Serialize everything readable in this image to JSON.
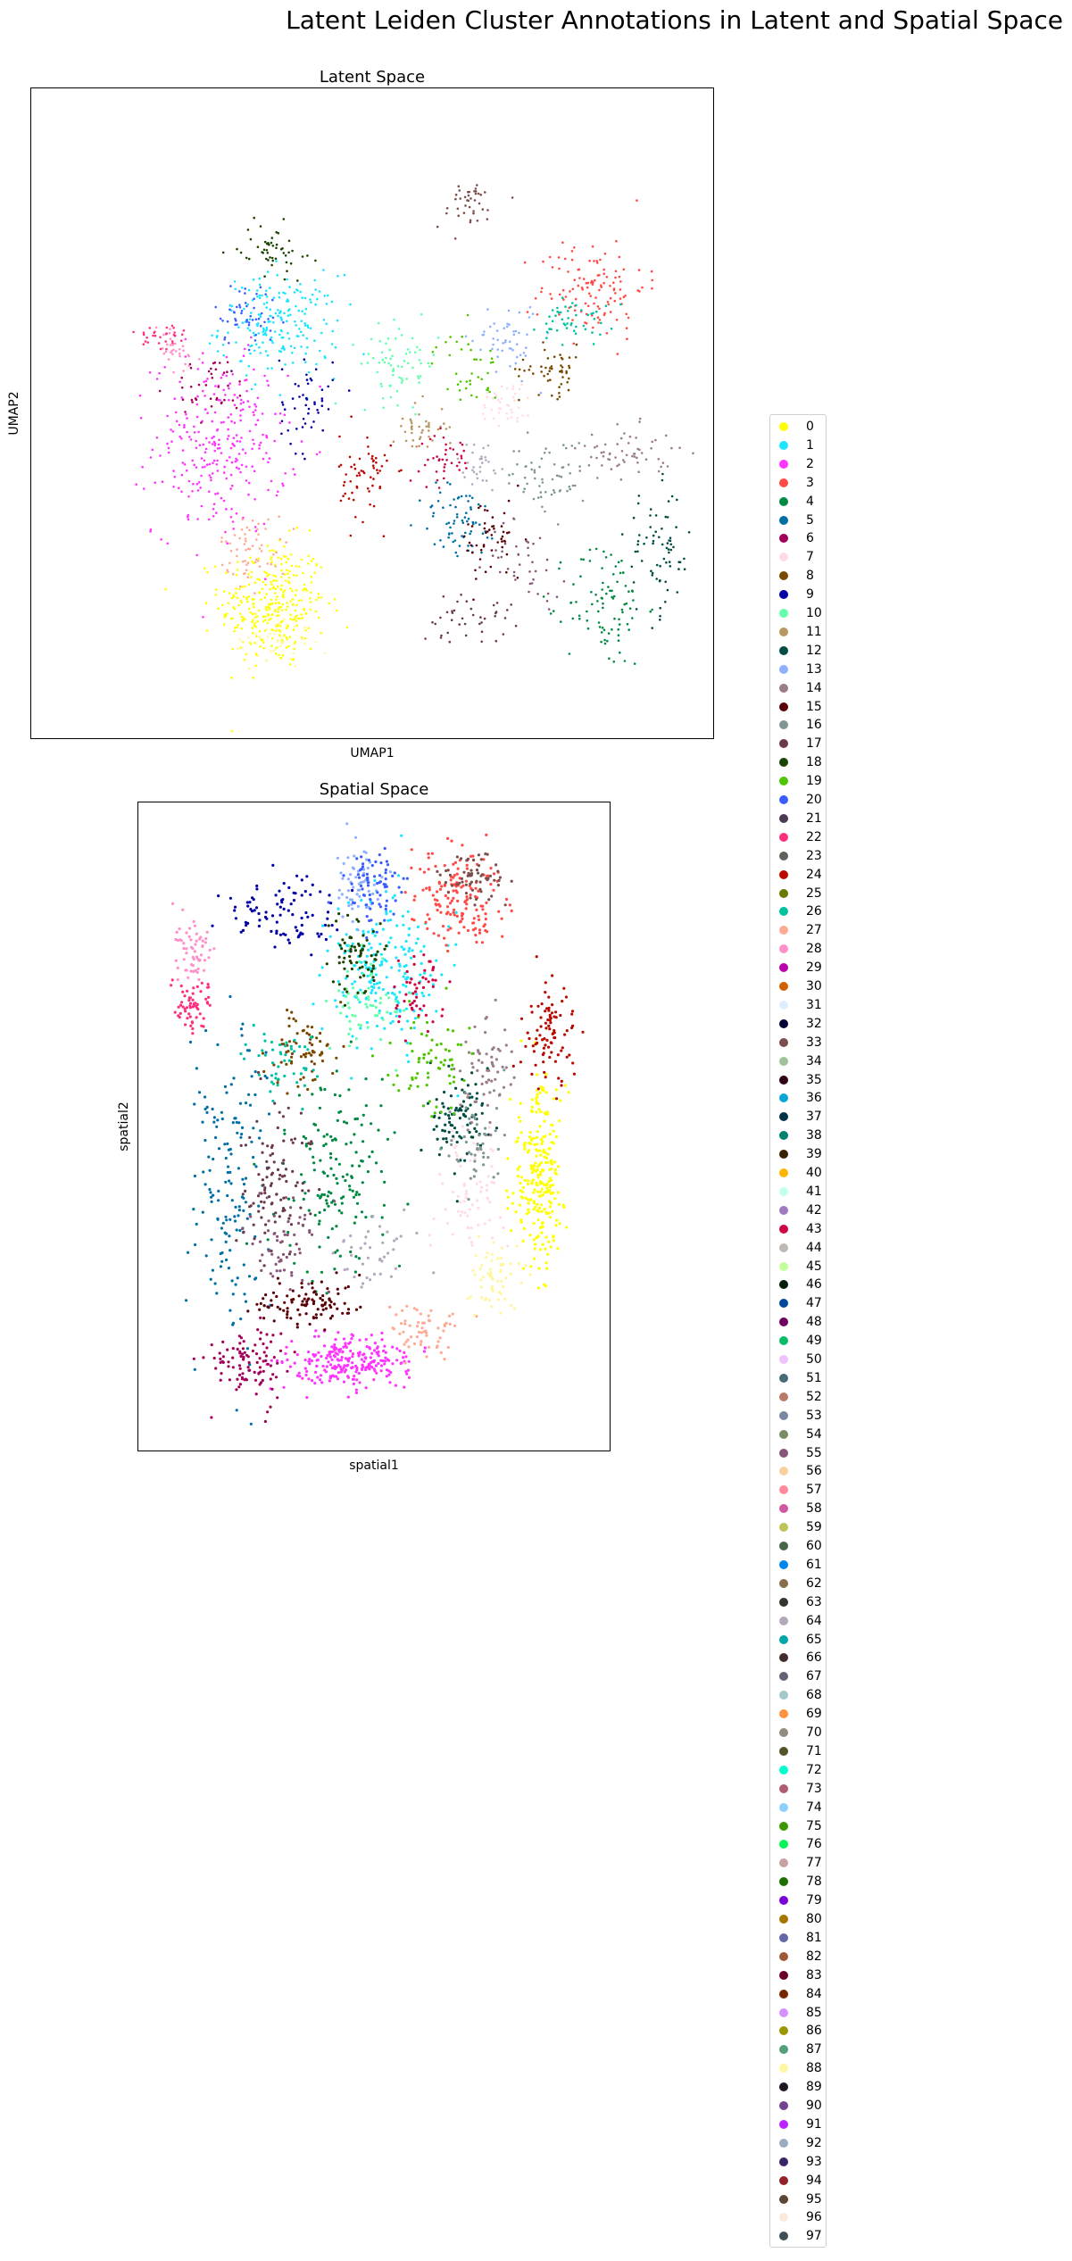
{
  "figure": {
    "title": "Latent Leiden Cluster Annotations in Latent and Spatial Space"
  },
  "chart_data": [
    {
      "type": "scatter",
      "title": "Latent Space",
      "xlabel": "UMAP1",
      "ylabel": "UMAP2",
      "xlim": [
        0,
        100
      ],
      "ylim": [
        0,
        100
      ],
      "grid": false,
      "legend": "shared, right",
      "note": "point cloud estimated; approximate cluster centers and spreads in UMAP units",
      "clusters": [
        {
          "label": "0",
          "cx": 35,
          "cy": 20,
          "sx": 4.0,
          "sy": 5.0,
          "n": 320
        },
        {
          "label": "1",
          "cx": 36,
          "cy": 64,
          "sx": 4.5,
          "sy": 4.0,
          "n": 200
        },
        {
          "label": "2",
          "cx": 27,
          "cy": 45,
          "sx": 5.0,
          "sy": 7.0,
          "n": 280
        },
        {
          "label": "3",
          "cx": 83,
          "cy": 70,
          "sx": 4.0,
          "sy": 4.0,
          "n": 120
        },
        {
          "label": "4",
          "cx": 85,
          "cy": 20,
          "sx": 3.0,
          "sy": 5.0,
          "n": 90
        },
        {
          "label": "5",
          "cx": 63,
          "cy": 33,
          "sx": 3.0,
          "sy": 3.0,
          "n": 70
        },
        {
          "label": "6",
          "cx": 26,
          "cy": 54,
          "sx": 3.0,
          "sy": 2.5,
          "n": 40
        },
        {
          "label": "7",
          "cx": 70,
          "cy": 52,
          "sx": 2.0,
          "sy": 2.0,
          "n": 40
        },
        {
          "label": "8",
          "cx": 77,
          "cy": 57,
          "sx": 2.5,
          "sy": 2.0,
          "n": 50
        },
        {
          "label": "9",
          "cx": 40,
          "cy": 52,
          "sx": 2.0,
          "sy": 4.0,
          "n": 50
        },
        {
          "label": "10",
          "cx": 54,
          "cy": 58,
          "sx": 3.0,
          "sy": 3.0,
          "n": 70
        },
        {
          "label": "11",
          "cx": 57,
          "cy": 48,
          "sx": 2.0,
          "sy": 2.0,
          "n": 40
        },
        {
          "label": "12",
          "cx": 93,
          "cy": 28,
          "sx": 2.5,
          "sy": 5.0,
          "n": 70
        },
        {
          "label": "13",
          "cx": 70,
          "cy": 62,
          "sx": 2.5,
          "sy": 3.0,
          "n": 50
        },
        {
          "label": "14",
          "cx": 88,
          "cy": 44,
          "sx": 3.5,
          "sy": 2.0,
          "n": 60
        },
        {
          "label": "15",
          "cx": 68,
          "cy": 30,
          "sx": 2.5,
          "sy": 3.5,
          "n": 50
        },
        {
          "label": "16",
          "cx": 76,
          "cy": 40,
          "sx": 3.0,
          "sy": 3.0,
          "n": 60
        },
        {
          "label": "17",
          "cx": 64,
          "cy": 18,
          "sx": 3.5,
          "sy": 2.0,
          "n": 40
        },
        {
          "label": "18",
          "cx": 35,
          "cy": 76,
          "sx": 2.5,
          "sy": 2.0,
          "n": 50
        },
        {
          "label": "19",
          "cx": 64,
          "cy": 57,
          "sx": 2.5,
          "sy": 3.0,
          "n": 40
        },
        {
          "label": "20",
          "cx": 31,
          "cy": 66,
          "sx": 2.5,
          "sy": 2.5,
          "n": 50
        },
        {
          "label": "22",
          "cx": 18,
          "cy": 62,
          "sx": 2.0,
          "sy": 1.5,
          "n": 30
        },
        {
          "label": "24",
          "cx": 49,
          "cy": 40,
          "sx": 2.0,
          "sy": 3.5,
          "n": 60
        },
        {
          "label": "26",
          "cx": 80,
          "cy": 65,
          "sx": 2.5,
          "sy": 2.0,
          "n": 50
        },
        {
          "label": "27",
          "cx": 32,
          "cy": 29,
          "sx": 2.5,
          "sy": 2.5,
          "n": 60
        },
        {
          "label": "28",
          "cx": 20,
          "cy": 60,
          "sx": 2.0,
          "sy": 2.0,
          "n": 30
        },
        {
          "label": "33",
          "cx": 64,
          "cy": 83,
          "sx": 2.5,
          "sy": 2.0,
          "n": 40
        },
        {
          "label": "43",
          "cx": 61,
          "cy": 43,
          "sx": 2.0,
          "sy": 2.0,
          "n": 40
        },
        {
          "label": "55",
          "cx": 73,
          "cy": 27,
          "sx": 3.0,
          "sy": 3.0,
          "n": 40
        },
        {
          "label": "64",
          "cx": 66,
          "cy": 42,
          "sx": 2.0,
          "sy": 2.0,
          "n": 30
        },
        {
          "label": "88",
          "cx": 35,
          "cy": 14,
          "sx": 3.0,
          "sy": 2.0,
          "n": 40
        }
      ]
    },
    {
      "type": "scatter",
      "title": "Spatial Space",
      "xlabel": "spatial1",
      "ylabel": "spatial2",
      "xlim": [
        0,
        100
      ],
      "ylim": [
        0,
        100
      ],
      "grid": false,
      "legend": "shared, right",
      "note": "point cloud estimated; approximate cluster centers and spreads in spatial units",
      "clusters": [
        {
          "label": "0",
          "cx": 86,
          "cy": 42,
          "sx": 3.0,
          "sy": 7.0,
          "n": 260
        },
        {
          "label": "1",
          "cx": 52,
          "cy": 75,
          "sx": 6.0,
          "sy": 6.0,
          "n": 200
        },
        {
          "label": "2",
          "cx": 45,
          "cy": 13,
          "sx": 7.0,
          "sy": 2.0,
          "n": 240
        },
        {
          "label": "3",
          "cx": 68,
          "cy": 86,
          "sx": 5.0,
          "sy": 4.0,
          "n": 160
        },
        {
          "label": "4",
          "cx": 42,
          "cy": 43,
          "sx": 6.0,
          "sy": 8.0,
          "n": 160
        },
        {
          "label": "5",
          "cx": 18,
          "cy": 42,
          "sx": 4.0,
          "sy": 12.0,
          "n": 160
        },
        {
          "label": "6",
          "cx": 22,
          "cy": 13,
          "sx": 4.0,
          "sy": 3.0,
          "n": 100
        },
        {
          "label": "7",
          "cx": 70,
          "cy": 40,
          "sx": 4.0,
          "sy": 6.0,
          "n": 70
        },
        {
          "label": "8",
          "cx": 34,
          "cy": 62,
          "sx": 4.0,
          "sy": 3.0,
          "n": 70
        },
        {
          "label": "9",
          "cx": 30,
          "cy": 84,
          "sx": 6.0,
          "sy": 3.0,
          "n": 90
        },
        {
          "label": "10",
          "cx": 48,
          "cy": 70,
          "sx": 4.0,
          "sy": 4.0,
          "n": 60
        },
        {
          "label": "12",
          "cx": 68,
          "cy": 52,
          "sx": 3.0,
          "sy": 4.0,
          "n": 90
        },
        {
          "label": "13",
          "cx": 46,
          "cy": 89,
          "sx": 3.0,
          "sy": 3.0,
          "n": 60
        },
        {
          "label": "14",
          "cx": 75,
          "cy": 60,
          "sx": 3.0,
          "sy": 4.0,
          "n": 60
        },
        {
          "label": "15",
          "cx": 36,
          "cy": 22,
          "sx": 6.0,
          "sy": 2.0,
          "n": 100
        },
        {
          "label": "16",
          "cx": 72,
          "cy": 48,
          "sx": 3.0,
          "sy": 4.0,
          "n": 50
        },
        {
          "label": "17",
          "cx": 28,
          "cy": 40,
          "sx": 4.0,
          "sy": 7.0,
          "n": 100
        },
        {
          "label": "18",
          "cx": 46,
          "cy": 77,
          "sx": 3.0,
          "sy": 3.0,
          "n": 70
        },
        {
          "label": "19",
          "cx": 62,
          "cy": 60,
          "sx": 4.0,
          "sy": 4.0,
          "n": 70
        },
        {
          "label": "20",
          "cx": 50,
          "cy": 88,
          "sx": 3.0,
          "sy": 3.0,
          "n": 70
        },
        {
          "label": "22",
          "cx": 10,
          "cy": 70,
          "sx": 2.0,
          "sy": 2.0,
          "n": 60
        },
        {
          "label": "24",
          "cx": 88,
          "cy": 64,
          "sx": 3.0,
          "sy": 4.0,
          "n": 90
        },
        {
          "label": "26",
          "cx": 30,
          "cy": 60,
          "sx": 4.0,
          "sy": 3.0,
          "n": 50
        },
        {
          "label": "27",
          "cx": 60,
          "cy": 18,
          "sx": 4.0,
          "sy": 2.0,
          "n": 60
        },
        {
          "label": "28",
          "cx": 10,
          "cy": 78,
          "sx": 2.0,
          "sy": 3.0,
          "n": 60
        },
        {
          "label": "33",
          "cx": 72,
          "cy": 90,
          "sx": 4.0,
          "sy": 2.0,
          "n": 60
        },
        {
          "label": "43",
          "cx": 60,
          "cy": 72,
          "sx": 3.0,
          "sy": 3.0,
          "n": 50
        },
        {
          "label": "55",
          "cx": 30,
          "cy": 32,
          "sx": 4.0,
          "sy": 4.0,
          "n": 60
        },
        {
          "label": "64",
          "cx": 50,
          "cy": 30,
          "sx": 5.0,
          "sy": 3.0,
          "n": 40
        },
        {
          "label": "88",
          "cx": 76,
          "cy": 26,
          "sx": 3.0,
          "sy": 3.0,
          "n": 60
        }
      ]
    }
  ],
  "legend": {
    "entries": [
      {
        "label": "0",
        "color": "#ffff00"
      },
      {
        "label": "1",
        "color": "#1ce6ff"
      },
      {
        "label": "2",
        "color": "#ff34ff"
      },
      {
        "label": "3",
        "color": "#ff4a46"
      },
      {
        "label": "4",
        "color": "#008941"
      },
      {
        "label": "5",
        "color": "#006fa6"
      },
      {
        "label": "6",
        "color": "#a30059"
      },
      {
        "label": "7",
        "color": "#ffdbe5"
      },
      {
        "label": "8",
        "color": "#7a4900"
      },
      {
        "label": "9",
        "color": "#0000a6"
      },
      {
        "label": "10",
        "color": "#63ffac"
      },
      {
        "label": "11",
        "color": "#b79762"
      },
      {
        "label": "12",
        "color": "#004d43"
      },
      {
        "label": "13",
        "color": "#8fb0ff"
      },
      {
        "label": "14",
        "color": "#997d87"
      },
      {
        "label": "15",
        "color": "#5a0007"
      },
      {
        "label": "16",
        "color": "#809693"
      },
      {
        "label": "17",
        "color": "#6a3a4c"
      },
      {
        "label": "18",
        "color": "#1b4400"
      },
      {
        "label": "19",
        "color": "#4fc601"
      },
      {
        "label": "20",
        "color": "#3b5dff"
      },
      {
        "label": "21",
        "color": "#4a3b53"
      },
      {
        "label": "22",
        "color": "#ff2f80"
      },
      {
        "label": "23",
        "color": "#61615a"
      },
      {
        "label": "24",
        "color": "#ba0900"
      },
      {
        "label": "25",
        "color": "#6b7900"
      },
      {
        "label": "26",
        "color": "#00c2a0"
      },
      {
        "label": "27",
        "color": "#ffaa92"
      },
      {
        "label": "28",
        "color": "#ff90c9"
      },
      {
        "label": "29",
        "color": "#b903aa"
      },
      {
        "label": "30",
        "color": "#d16100"
      },
      {
        "label": "31",
        "color": "#ddefff"
      },
      {
        "label": "32",
        "color": "#000035"
      },
      {
        "label": "33",
        "color": "#7b4f4b"
      },
      {
        "label": "34",
        "color": "#a1c299"
      },
      {
        "label": "35",
        "color": "#300018"
      },
      {
        "label": "36",
        "color": "#0aa6d8"
      },
      {
        "label": "37",
        "color": "#013349"
      },
      {
        "label": "38",
        "color": "#00846f"
      },
      {
        "label": "39",
        "color": "#372101"
      },
      {
        "label": "40",
        "color": "#ffb500"
      },
      {
        "label": "41",
        "color": "#c2ffed"
      },
      {
        "label": "42",
        "color": "#a079bf"
      },
      {
        "label": "43",
        "color": "#cc0744"
      },
      {
        "label": "44",
        "color": "#c0b9b2"
      },
      {
        "label": "45",
        "color": "#c2ff99"
      },
      {
        "label": "46",
        "color": "#001e09"
      },
      {
        "label": "47",
        "color": "#00489c"
      },
      {
        "label": "48",
        "color": "#6f0062"
      },
      {
        "label": "49",
        "color": "#0cbd66"
      },
      {
        "label": "50",
        "color": "#eec3ff"
      },
      {
        "label": "51",
        "color": "#456d75"
      },
      {
        "label": "52",
        "color": "#b77b68"
      },
      {
        "label": "53",
        "color": "#7a87a1"
      },
      {
        "label": "54",
        "color": "#788d66"
      },
      {
        "label": "55",
        "color": "#885578"
      },
      {
        "label": "56",
        "color": "#fad09f"
      },
      {
        "label": "57",
        "color": "#ff8a9a"
      },
      {
        "label": "58",
        "color": "#d157a0"
      },
      {
        "label": "59",
        "color": "#bec459"
      },
      {
        "label": "60",
        "color": "#456648"
      },
      {
        "label": "61",
        "color": "#0086ed"
      },
      {
        "label": "62",
        "color": "#886f4c"
      },
      {
        "label": "63",
        "color": "#34362d"
      },
      {
        "label": "64",
        "color": "#b4a8bd"
      },
      {
        "label": "65",
        "color": "#00a6aa"
      },
      {
        "label": "66",
        "color": "#452c2c"
      },
      {
        "label": "67",
        "color": "#636375"
      },
      {
        "label": "68",
        "color": "#a3c8c9"
      },
      {
        "label": "69",
        "color": "#ff913f"
      },
      {
        "label": "70",
        "color": "#938a81"
      },
      {
        "label": "71",
        "color": "#575329"
      },
      {
        "label": "72",
        "color": "#00fecf"
      },
      {
        "label": "73",
        "color": "#b05b6f"
      },
      {
        "label": "74",
        "color": "#8cd0ff"
      },
      {
        "label": "75",
        "color": "#3b9700"
      },
      {
        "label": "76",
        "color": "#04f757"
      },
      {
        "label": "77",
        "color": "#c8a1a1"
      },
      {
        "label": "78",
        "color": "#1e6e00"
      },
      {
        "label": "79",
        "color": "#7900d7"
      },
      {
        "label": "80",
        "color": "#a77500"
      },
      {
        "label": "81",
        "color": "#6367a9"
      },
      {
        "label": "82",
        "color": "#a05837"
      },
      {
        "label": "83",
        "color": "#6b002c"
      },
      {
        "label": "84",
        "color": "#772600"
      },
      {
        "label": "85",
        "color": "#d790ff"
      },
      {
        "label": "86",
        "color": "#9b9700"
      },
      {
        "label": "87",
        "color": "#549e79"
      },
      {
        "label": "88",
        "color": "#fff69f"
      },
      {
        "label": "89",
        "color": "#201625"
      },
      {
        "label": "90",
        "color": "#72418f"
      },
      {
        "label": "91",
        "color": "#bc23ff"
      },
      {
        "label": "92",
        "color": "#99adc0"
      },
      {
        "label": "93",
        "color": "#3a2465"
      },
      {
        "label": "94",
        "color": "#922329"
      },
      {
        "label": "95",
        "color": "#5b4534"
      },
      {
        "label": "96",
        "color": "#fde8dc"
      },
      {
        "label": "97",
        "color": "#404e55"
      }
    ]
  }
}
